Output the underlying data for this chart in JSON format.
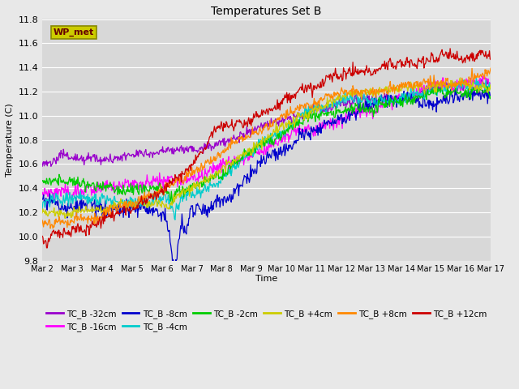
{
  "title": "Temperatures Set B",
  "xlabel": "Time",
  "ylabel": "Temperature (C)",
  "ylim": [
    9.8,
    11.8
  ],
  "x_tick_labels": [
    "Mar 2",
    "Mar 3",
    "Mar 4",
    "Mar 5",
    "Mar 6",
    "Mar 7",
    "Mar 8",
    "Mar 9",
    "Mar 10",
    "Mar 11",
    "Mar 12",
    "Mar 13",
    "Mar 14",
    "Mar 15",
    "Mar 16",
    "Mar 17"
  ],
  "series": [
    {
      "label": "TC_B -32cm",
      "color": "#9900cc"
    },
    {
      "label": "TC_B -16cm",
      "color": "#ff00ff"
    },
    {
      "label": "TC_B -8cm",
      "color": "#0000cc"
    },
    {
      "label": "TC_B -4cm",
      "color": "#00cccc"
    },
    {
      "label": "TC_B -2cm",
      "color": "#00cc00"
    },
    {
      "label": "TC_B +4cm",
      "color": "#cccc00"
    },
    {
      "label": "TC_B +8cm",
      "color": "#ff8800"
    },
    {
      "label": "TC_B +12cm",
      "color": "#cc0000"
    }
  ],
  "wp_met_box_facecolor": "#cccc00",
  "wp_met_box_edgecolor": "#888800",
  "wp_met_text_color": "#660000",
  "plot_bg_color": "#d8d8d8",
  "fig_bg_color": "#e8e8e8",
  "grid_color": "#ffffff",
  "n_points": 720,
  "seed": 42
}
